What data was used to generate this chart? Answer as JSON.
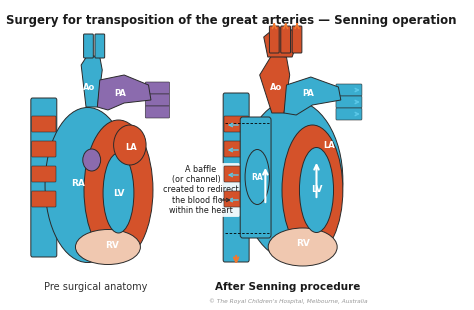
{
  "title": "Surgery for transposition of the great arteries — Senning operation",
  "title_fontsize": 8.5,
  "bg_color": "#ffffff",
  "label_left": "Pre surgical anatomy",
  "label_right": "After Senning procedure",
  "annotation_text": "A baffle\n(or channel) is\ncreated to redirect\nthe blood flow\nwithin the heart",
  "copyright_text": "© The Royal Children's Hospital, Melbourne, Australia",
  "red": "#D4522A",
  "blue": "#3AADCF",
  "purple": "#8B6BAE",
  "pink": "#F0C8B0",
  "dark": "#2A2A2A",
  "arrow_blue": "#5BC8E8",
  "arrow_orange": "#F07830"
}
